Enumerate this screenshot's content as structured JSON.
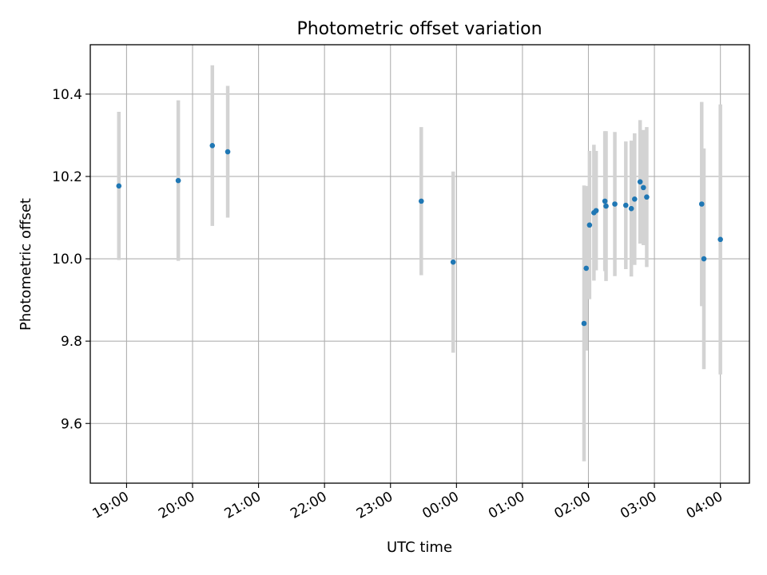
{
  "chart_data": {
    "type": "scatter",
    "title": "Photometric offset variation",
    "xlabel": "UTC time",
    "ylabel": "Photometric offset",
    "grid": true,
    "x_ticks": [
      "19:00",
      "20:00",
      "21:00",
      "22:00",
      "23:00",
      "00:00",
      "01:00",
      "02:00",
      "03:00",
      "04:00"
    ],
    "x_ticks_hours": [
      19,
      20,
      21,
      22,
      23,
      24,
      25,
      26,
      27,
      28
    ],
    "xlim_hours": [
      18.45,
      28.44
    ],
    "y_ticks": [
      "9.6",
      "9.8",
      "10.0",
      "10.2",
      "10.4"
    ],
    "y_tick_values": [
      9.6,
      9.8,
      10.0,
      10.2,
      10.4
    ],
    "ylim": [
      9.455,
      10.52
    ],
    "marker_color": "#1f77b4",
    "errorbar_color": "#d3d3d3",
    "points": [
      {
        "t": "18:53",
        "y": 10.177,
        "err": 0.18
      },
      {
        "t": "19:47",
        "y": 10.19,
        "err": 0.195
      },
      {
        "t": "20:18",
        "y": 10.275,
        "err": 0.195
      },
      {
        "t": "20:32",
        "y": 10.26,
        "err": 0.16
      },
      {
        "t": "23:28",
        "y": 10.14,
        "err": 0.18
      },
      {
        "t": "23:57",
        "y": 9.992,
        "err": 0.22
      },
      {
        "t": "01:56",
        "y": 9.843,
        "err": 0.335
      },
      {
        "t": "01:58",
        "y": 9.977,
        "err": 0.2
      },
      {
        "t": "02:01",
        "y": 10.082,
        "err": 0.18
      },
      {
        "t": "02:05",
        "y": 10.112,
        "err": 0.165
      },
      {
        "t": "02:07",
        "y": 10.117,
        "err": 0.145
      },
      {
        "t": "02:15",
        "y": 10.14,
        "err": 0.17
      },
      {
        "t": "02:16",
        "y": 10.128,
        "err": 0.182
      },
      {
        "t": "02:24",
        "y": 10.133,
        "err": 0.175
      },
      {
        "t": "02:34",
        "y": 10.13,
        "err": 0.155
      },
      {
        "t": "02:39",
        "y": 10.122,
        "err": 0.165
      },
      {
        "t": "02:42",
        "y": 10.145,
        "err": 0.16
      },
      {
        "t": "02:47",
        "y": 10.187,
        "err": 0.15
      },
      {
        "t": "02:50",
        "y": 10.173,
        "err": 0.14
      },
      {
        "t": "02:53",
        "y": 10.15,
        "err": 0.17
      },
      {
        "t": "03:43",
        "y": 10.133,
        "err": 0.248
      },
      {
        "t": "03:45",
        "y": 10.0,
        "err": 0.268
      },
      {
        "t": "04:00",
        "y": 10.047,
        "err": 0.328
      }
    ]
  }
}
